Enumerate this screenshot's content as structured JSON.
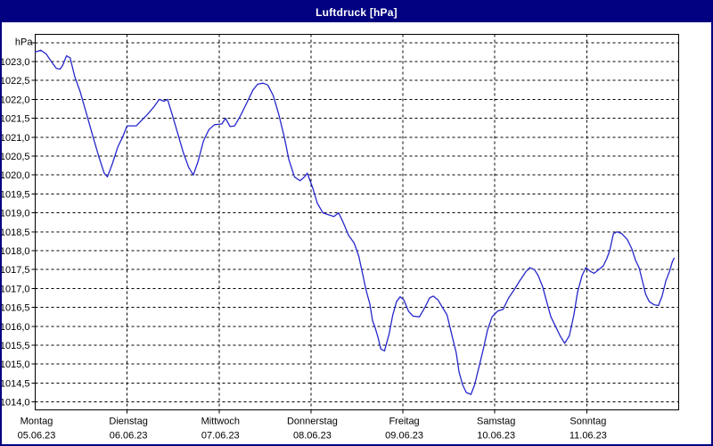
{
  "window": {
    "title": "Luftdruck [hPa]"
  },
  "colors": {
    "title_bar_bg": "#000080",
    "title_text": "#ffffff",
    "window_border": "#000080",
    "chart_bg": "#ffffff",
    "plot_frame": "#000000",
    "grid": "#000000",
    "line": "#2626cc",
    "label_text": "#000000"
  },
  "chart_data": {
    "type": "line",
    "title": "Luftdruck [hPa]",
    "unit_label": "hPa",
    "grid": "dashed",
    "legend_position": "none",
    "ylim": [
      1013.8,
      1023.73
    ],
    "ytick_step": 0.5,
    "ygrid_top_value": 1023.5,
    "ygrid_count": 20,
    "ytick_labels": [
      "1023,0",
      "1022,5",
      "1022,0",
      "1021,5",
      "1021,0",
      "1020,5",
      "1020,0",
      "1019,5",
      "1019,0",
      "1018,5",
      "1018,0",
      "1017,5",
      "1017,0",
      "1016,5",
      "1016,0",
      "1015,5",
      "1015,0",
      "1014,5",
      "1014,0"
    ],
    "x_categories": [
      {
        "day": "Montag",
        "date": "05.06.23"
      },
      {
        "day": "Dienstag",
        "date": "06.06.23"
      },
      {
        "day": "Mittwoch",
        "date": "07.06.23"
      },
      {
        "day": "Donnerstag",
        "date": "08.06.23"
      },
      {
        "day": "Freitag",
        "date": "09.06.23"
      },
      {
        "day": "Samstag",
        "date": "10.06.23"
      },
      {
        "day": "Sonntag",
        "date": "11.06.23"
      }
    ],
    "xlim_days": [
      0,
      7
    ],
    "series": [
      {
        "name": "Luftdruck",
        "points": [
          [
            0.0,
            1023.25
          ],
          [
            0.06,
            1023.3
          ],
          [
            0.12,
            1023.2
          ],
          [
            0.175,
            1023.0
          ],
          [
            0.23,
            1022.82
          ],
          [
            0.27,
            1022.8
          ],
          [
            0.3,
            1022.9
          ],
          [
            0.34,
            1023.15
          ],
          [
            0.38,
            1023.1
          ],
          [
            0.43,
            1022.6
          ],
          [
            0.49,
            1022.2
          ],
          [
            0.56,
            1021.6
          ],
          [
            0.63,
            1021.0
          ],
          [
            0.69,
            1020.5
          ],
          [
            0.75,
            1020.05
          ],
          [
            0.785,
            1019.95
          ],
          [
            0.84,
            1020.3
          ],
          [
            0.9,
            1020.75
          ],
          [
            0.95,
            1021.0
          ],
          [
            1.0,
            1021.3
          ],
          [
            1.1,
            1021.3
          ],
          [
            1.16,
            1021.45
          ],
          [
            1.22,
            1021.6
          ],
          [
            1.29,
            1021.8
          ],
          [
            1.35,
            1022.0
          ],
          [
            1.4,
            1021.95
          ],
          [
            1.44,
            1022.0
          ],
          [
            1.49,
            1021.6
          ],
          [
            1.55,
            1021.1
          ],
          [
            1.61,
            1020.6
          ],
          [
            1.67,
            1020.2
          ],
          [
            1.72,
            1020.0
          ],
          [
            1.77,
            1020.35
          ],
          [
            1.83,
            1020.9
          ],
          [
            1.89,
            1021.2
          ],
          [
            1.95,
            1021.33
          ],
          [
            2.03,
            1021.35
          ],
          [
            2.07,
            1021.5
          ],
          [
            2.12,
            1021.28
          ],
          [
            2.17,
            1021.3
          ],
          [
            2.24,
            1021.6
          ],
          [
            2.31,
            1021.95
          ],
          [
            2.37,
            1022.25
          ],
          [
            2.42,
            1022.4
          ],
          [
            2.48,
            1022.43
          ],
          [
            2.53,
            1022.38
          ],
          [
            2.59,
            1022.1
          ],
          [
            2.65,
            1021.6
          ],
          [
            2.71,
            1021.0
          ],
          [
            2.76,
            1020.4
          ],
          [
            2.82,
            1019.95
          ],
          [
            2.88,
            1019.85
          ],
          [
            2.93,
            1019.95
          ],
          [
            2.96,
            1020.05
          ],
          [
            3.02,
            1019.65
          ],
          [
            3.07,
            1019.25
          ],
          [
            3.13,
            1019.0
          ],
          [
            3.19,
            1018.95
          ],
          [
            3.25,
            1018.9
          ],
          [
            3.3,
            1019.0
          ],
          [
            3.35,
            1018.75
          ],
          [
            3.41,
            1018.4
          ],
          [
            3.47,
            1018.2
          ],
          [
            3.52,
            1017.85
          ],
          [
            3.56,
            1017.4
          ],
          [
            3.6,
            1016.95
          ],
          [
            3.64,
            1016.6
          ],
          [
            3.67,
            1016.15
          ],
          [
            3.7,
            1015.95
          ],
          [
            3.73,
            1015.7
          ],
          [
            3.76,
            1015.4
          ],
          [
            3.8,
            1015.35
          ],
          [
            3.85,
            1015.8
          ],
          [
            3.89,
            1016.3
          ],
          [
            3.93,
            1016.65
          ],
          [
            3.97,
            1016.78
          ],
          [
            4.01,
            1016.7
          ],
          [
            4.06,
            1016.4
          ],
          [
            4.11,
            1016.27
          ],
          [
            4.18,
            1016.25
          ],
          [
            4.24,
            1016.5
          ],
          [
            4.29,
            1016.75
          ],
          [
            4.33,
            1016.8
          ],
          [
            4.38,
            1016.7
          ],
          [
            4.43,
            1016.5
          ],
          [
            4.48,
            1016.3
          ],
          [
            4.53,
            1015.8
          ],
          [
            4.58,
            1015.3
          ],
          [
            4.61,
            1014.8
          ],
          [
            4.65,
            1014.45
          ],
          [
            4.69,
            1014.25
          ],
          [
            4.74,
            1014.2
          ],
          [
            4.78,
            1014.45
          ],
          [
            4.83,
            1014.95
          ],
          [
            4.88,
            1015.45
          ],
          [
            4.92,
            1015.9
          ],
          [
            4.97,
            1016.25
          ],
          [
            5.03,
            1016.4
          ],
          [
            5.09,
            1016.45
          ],
          [
            5.15,
            1016.75
          ],
          [
            5.22,
            1017.0
          ],
          [
            5.27,
            1017.2
          ],
          [
            5.34,
            1017.45
          ],
          [
            5.38,
            1017.55
          ],
          [
            5.43,
            1017.5
          ],
          [
            5.47,
            1017.35
          ],
          [
            5.52,
            1017.05
          ],
          [
            5.57,
            1016.6
          ],
          [
            5.61,
            1016.25
          ],
          [
            5.66,
            1016.0
          ],
          [
            5.71,
            1015.75
          ],
          [
            5.76,
            1015.55
          ],
          [
            5.81,
            1015.75
          ],
          [
            5.86,
            1016.3
          ],
          [
            5.9,
            1016.9
          ],
          [
            5.95,
            1017.35
          ],
          [
            5.99,
            1017.55
          ],
          [
            6.04,
            1017.45
          ],
          [
            6.08,
            1017.4
          ],
          [
            6.13,
            1017.5
          ],
          [
            6.18,
            1017.6
          ],
          [
            6.22,
            1017.8
          ],
          [
            6.25,
            1018.0
          ],
          [
            6.29,
            1018.45
          ],
          [
            6.33,
            1018.5
          ],
          [
            6.38,
            1018.45
          ],
          [
            6.44,
            1018.3
          ],
          [
            6.49,
            1018.05
          ],
          [
            6.53,
            1017.75
          ],
          [
            6.57,
            1017.55
          ],
          [
            6.61,
            1017.15
          ],
          [
            6.64,
            1016.85
          ],
          [
            6.68,
            1016.65
          ],
          [
            6.73,
            1016.57
          ],
          [
            6.78,
            1016.55
          ],
          [
            6.82,
            1016.8
          ],
          [
            6.86,
            1017.2
          ],
          [
            6.9,
            1017.45
          ],
          [
            6.93,
            1017.7
          ],
          [
            6.95,
            1017.8
          ]
        ]
      }
    ]
  }
}
